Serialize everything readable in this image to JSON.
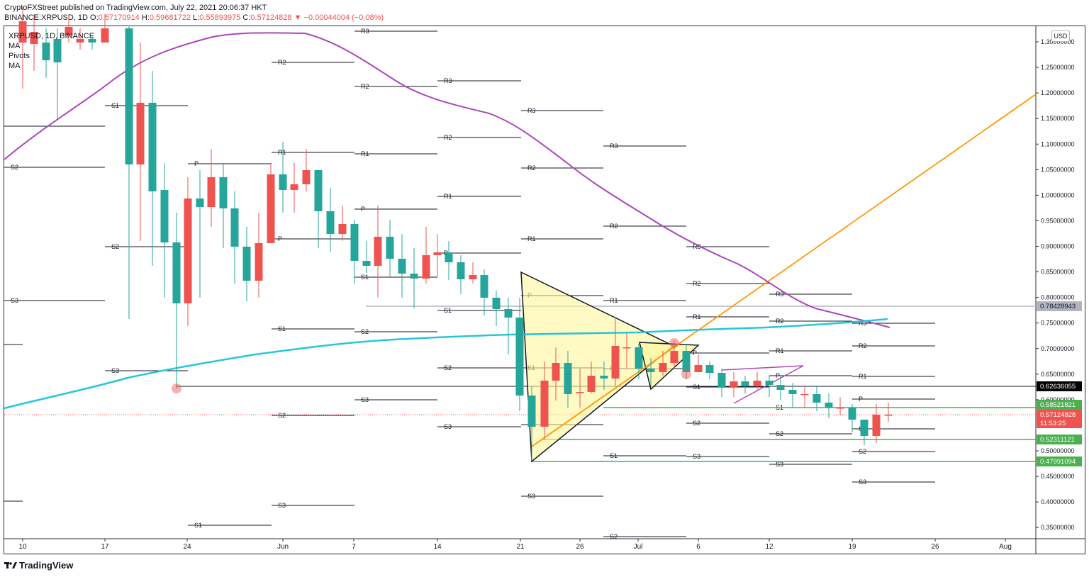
{
  "header": {
    "line1": "CryptoFXStreet published on TradingView.com, July 22, 2021 20:06:37 HKT",
    "symbol": "BINANCE:XRPUSD, 1D",
    "open_label": "O:",
    "open": "0.57170914",
    "high_label": "H:",
    "high": "0.59681722",
    "low_label": "L:",
    "low": "0.55893975",
    "close_label": "C:",
    "close": "0.57124828",
    "change": "▼ −0.00044004 (−0.08%)"
  },
  "legend": {
    "title": "XRPUSD, 1D, BINANCE",
    "items": [
      "MA",
      "Pivots",
      "MA"
    ]
  },
  "axis": {
    "currency": "USD",
    "price_ticks": [
      "1.30000000",
      "1.25000000",
      "1.20000000",
      "1.15000000",
      "1.10000000",
      "1.05000000",
      "1.00000000",
      "0.95000000",
      "0.90000000",
      "0.85000000",
      "0.80000000",
      "0.75000000",
      "0.70000000",
      "0.65000000",
      "0.60000000",
      "0.50000000",
      "0.45000000",
      "0.40000000",
      "0.35000000"
    ],
    "date_ticks": [
      "10",
      "17",
      "24",
      "Jun",
      "7",
      "14",
      "21",
      "26",
      "Jul",
      "6",
      "12",
      "19",
      "26",
      "Aug"
    ]
  },
  "price_tags": [
    {
      "label": "0.78428943",
      "bg": "#b2b5be",
      "fg": "#131722"
    },
    {
      "label": "0.62636055",
      "bg": "#000000",
      "fg": "#ffffff"
    },
    {
      "label": "0.58521821",
      "bg": "#4caf50",
      "fg": "#ffffff"
    },
    {
      "label": "0.57124828",
      "bg": "#ef5350",
      "fg": "#ffffff"
    },
    {
      "label": "11:53:25",
      "bg": "#ef5350",
      "fg": "#ffffff"
    },
    {
      "label": "0.52311121",
      "bg": "#4caf50",
      "fg": "#ffffff"
    },
    {
      "label": "0.47991094",
      "bg": "#4caf50",
      "fg": "#ffffff"
    }
  ],
  "pivot_labels": [
    "R3",
    "R2",
    "S1",
    "S2",
    "S3",
    "P",
    "R1",
    "R3",
    "R2",
    "R1",
    "P",
    "S1",
    "S2",
    "S3",
    "R3",
    "R2",
    "R1",
    "P",
    "S1",
    "S2",
    "S3",
    "R3",
    "R2",
    "R1",
    "P",
    "S1",
    "S2",
    "S3",
    "R3",
    "R2",
    "R1",
    "P",
    "S1",
    "S2",
    "S3",
    "R3",
    "R2",
    "R1",
    "P",
    "S1",
    "S2",
    "S3"
  ],
  "colors": {
    "bull": "#26a69a",
    "bear": "#ef5350",
    "ma_purple": "#ab47bc",
    "ma_cyan": "#26c6da",
    "trendline_orange": "#ff9800",
    "triangle_fill": "#fff59d",
    "support_green": "#4caf50"
  },
  "footer": {
    "brand": "TradingView"
  }
}
